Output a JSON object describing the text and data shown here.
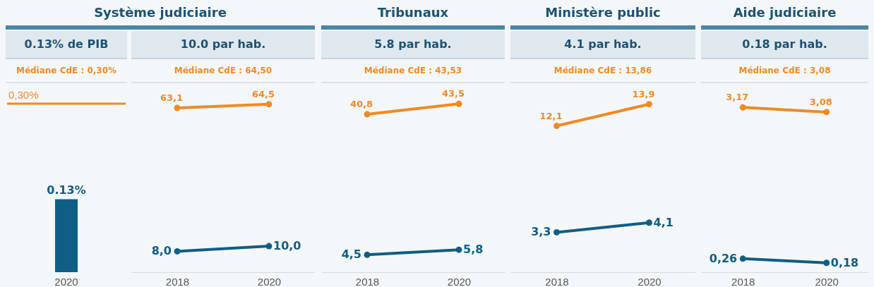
{
  "chart_data": [
    {
      "type": "bar",
      "subtitle": "0.13% de PIB",
      "annotations": [
        "Médiane CdE : 0,30%"
      ],
      "categories": [
        "2020"
      ],
      "values": [
        0.13
      ],
      "color": "#0f5e86",
      "value_labels": [
        "0.13%"
      ],
      "ref_lines": [
        {
          "axis": "y",
          "value": 0.3,
          "label": "0,30%",
          "color": "#f08a24"
        }
      ],
      "tick_labels": "x"
    },
    {
      "type": "line",
      "title": "Système judiciaire",
      "subtitle": "10.0 par hab.",
      "annotations": [
        "Médiane CdE : 64,50"
      ],
      "categories": [
        "2018",
        "2020"
      ],
      "marker": "circle",
      "tick_labels": "x",
      "series": [
        {
          "color": "#f08a24",
          "values": [
            63.1,
            64.5
          ],
          "value_labels": [
            "63,1",
            "64,5"
          ]
        },
        {
          "color": "#0f5e86",
          "values": [
            8.0,
            10.0
          ],
          "value_labels": [
            "8,0",
            "10,0"
          ]
        }
      ]
    },
    {
      "type": "line",
      "title": "Tribunaux",
      "subtitle": "5.8 par hab.",
      "annotations": [
        "Médiane CdE : 43,53"
      ],
      "categories": [
        "2018",
        "2020"
      ],
      "marker": "circle",
      "tick_labels": "x",
      "series": [
        {
          "color": "#f08a24",
          "values": [
            40.8,
            43.5
          ],
          "value_labels": [
            "40,8",
            "43,5"
          ]
        },
        {
          "color": "#0f5e86",
          "values": [
            4.5,
            5.8
          ],
          "value_labels": [
            "4,5",
            "5,8"
          ]
        }
      ]
    },
    {
      "type": "line",
      "title": "Ministère public",
      "subtitle": "4.1 par hab.",
      "annotations": [
        "Médiane CdE : 13,86"
      ],
      "categories": [
        "2018",
        "2020"
      ],
      "marker": "circle",
      "tick_labels": "x",
      "series": [
        {
          "color": "#f08a24",
          "values": [
            12.1,
            13.9
          ],
          "value_labels": [
            "12,1",
            "13,9"
          ]
        },
        {
          "color": "#0f5e86",
          "values": [
            3.3,
            4.1
          ],
          "value_labels": [
            "3,3",
            "4,1"
          ]
        }
      ]
    },
    {
      "type": "line",
      "title": "Aide judiciaire",
      "subtitle": "0.18 par hab.",
      "annotations": [
        "Médiane CdE : 3,08"
      ],
      "categories": [
        "2018",
        "2020"
      ],
      "marker": "circle",
      "tick_labels": "x",
      "series": [
        {
          "color": "#f08a24",
          "values": [
            3.17,
            3.08
          ],
          "value_labels": [
            "3,17",
            "3,08"
          ]
        },
        {
          "color": "#0f5e86",
          "values": [
            0.26,
            0.18
          ],
          "value_labels": [
            "0,26",
            "0,18"
          ]
        }
      ]
    }
  ]
}
